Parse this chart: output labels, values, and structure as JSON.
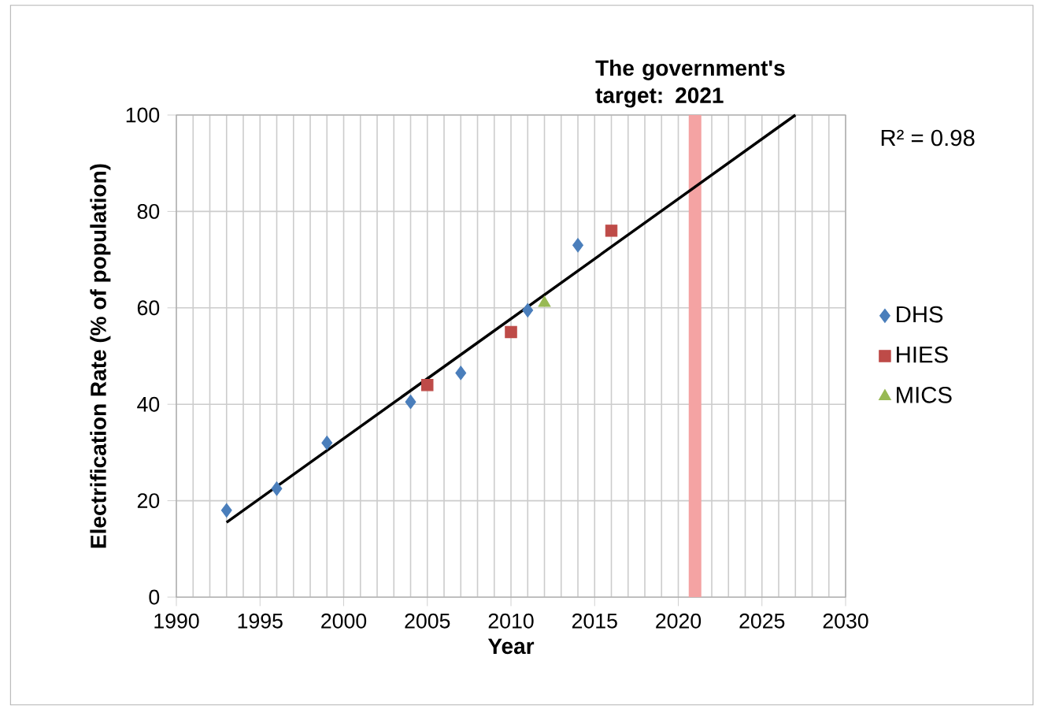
{
  "chart_data": {
    "type": "scatter",
    "xlabel": "Year",
    "ylabel": "Electrification Rate (% of population)",
    "xlim": [
      1990,
      2030
    ],
    "xticks": [
      1990,
      1995,
      2000,
      2005,
      2010,
      2015,
      2020,
      2025,
      2030
    ],
    "ylim": [
      0,
      100
    ],
    "yticks": [
      0,
      20,
      40,
      60,
      80,
      100
    ],
    "grid": true,
    "legend": "right",
    "series": [
      {
        "name": "DHS",
        "color": "#4a7ebb",
        "marker": "diamond",
        "x": [
          1993,
          1996,
          1999,
          2004,
          2007,
          2011,
          2014
        ],
        "values": [
          18,
          22.5,
          32,
          40.5,
          46.5,
          59.5,
          73
        ]
      },
      {
        "name": "HIES",
        "color": "#be4b48",
        "marker": "square",
        "x": [
          2005,
          2010,
          2016
        ],
        "values": [
          44,
          55,
          76
        ]
      },
      {
        "name": "MICS",
        "color": "#98b954",
        "marker": "triangle",
        "x": [
          2012
        ],
        "values": [
          61
        ]
      },
      {
        "type": "line",
        "color": "#000000",
        "marker": "none",
        "x": [
          1993,
          2027
        ],
        "values": [
          15.5,
          100
        ]
      }
    ],
    "ref_lines": [
      {
        "axis": "x",
        "value": 2021,
        "label": "The government's target: 2021",
        "color": "#f4a3a3"
      }
    ],
    "annotations": [
      "R² = 0.98"
    ]
  }
}
